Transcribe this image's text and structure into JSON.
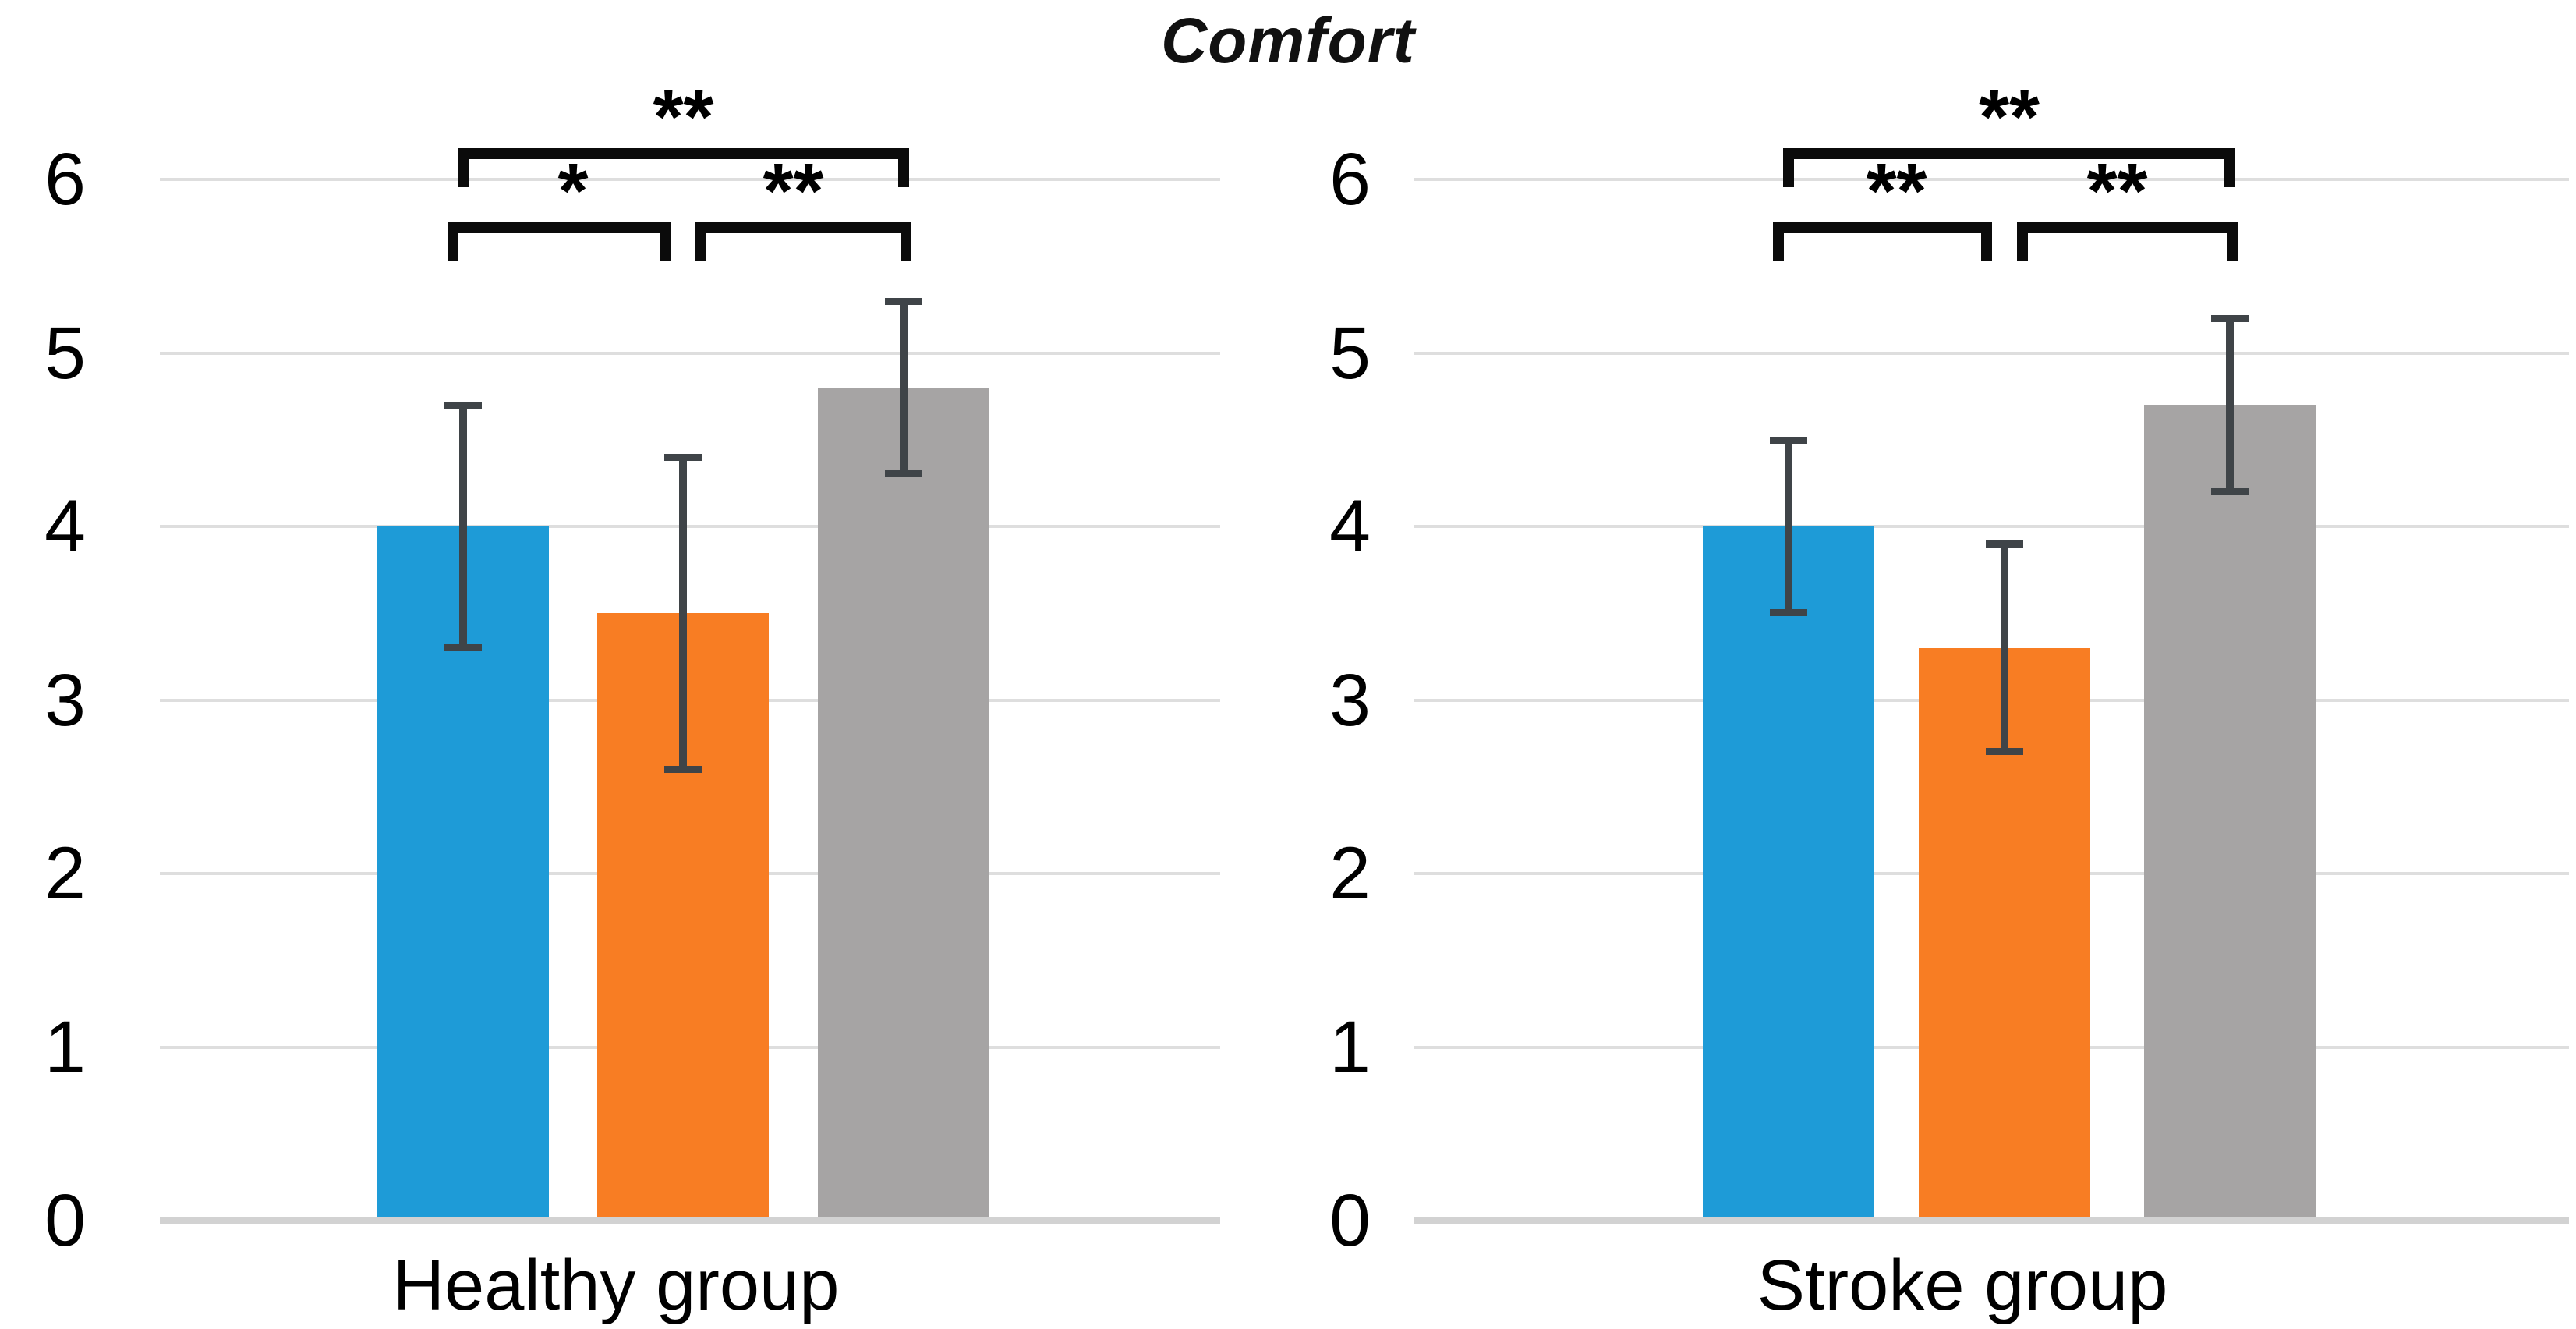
{
  "title": "Comfort",
  "colors": {
    "bar_blue": "#1E9BD7",
    "bar_orange": "#F87D23",
    "bar_gray": "#A6A4A4",
    "error_bar": "#3F4448",
    "bracket": "#0B0B0B",
    "gridline": "#DEDEDE",
    "axis_line": "#D2D2D2",
    "text": "#000000",
    "background": "#FFFFFF"
  },
  "y_axis": {
    "min": 0,
    "max": 6,
    "ticks": [
      0,
      1,
      2,
      3,
      4,
      5,
      6
    ]
  },
  "chart_data": {
    "type": "bar",
    "title": "Comfort",
    "ylim": [
      0,
      6
    ],
    "grid": true,
    "legend": false,
    "error_bars": true,
    "panels": [
      {
        "category": "Healthy group",
        "bars": [
          {
            "value": 4.0,
            "error_low": 3.3,
            "error_high": 4.7,
            "color": "#1E9BD7"
          },
          {
            "value": 3.5,
            "error_low": 2.6,
            "error_high": 4.4,
            "color": "#F87D23"
          },
          {
            "value": 4.8,
            "error_low": 4.3,
            "error_high": 5.3,
            "color": "#A6A4A4"
          }
        ],
        "significance": [
          {
            "between": [
              0,
              2
            ],
            "label": "**",
            "row": "top"
          },
          {
            "between": [
              0,
              1
            ],
            "label": "*",
            "row": "bottom"
          },
          {
            "between": [
              1,
              2
            ],
            "label": "**",
            "row": "bottom"
          }
        ]
      },
      {
        "category": "Stroke group",
        "bars": [
          {
            "value": 4.0,
            "error_low": 3.5,
            "error_high": 4.5,
            "color": "#1E9BD7"
          },
          {
            "value": 3.3,
            "error_low": 2.7,
            "error_high": 3.9,
            "color": "#F87D23"
          },
          {
            "value": 4.7,
            "error_low": 4.2,
            "error_high": 5.2,
            "color": "#A6A4A4"
          }
        ],
        "significance": [
          {
            "between": [
              0,
              2
            ],
            "label": "**",
            "row": "top"
          },
          {
            "between": [
              0,
              1
            ],
            "label": "**",
            "row": "bottom"
          },
          {
            "between": [
              1,
              2
            ],
            "label": "**",
            "row": "bottom"
          }
        ]
      }
    ]
  }
}
